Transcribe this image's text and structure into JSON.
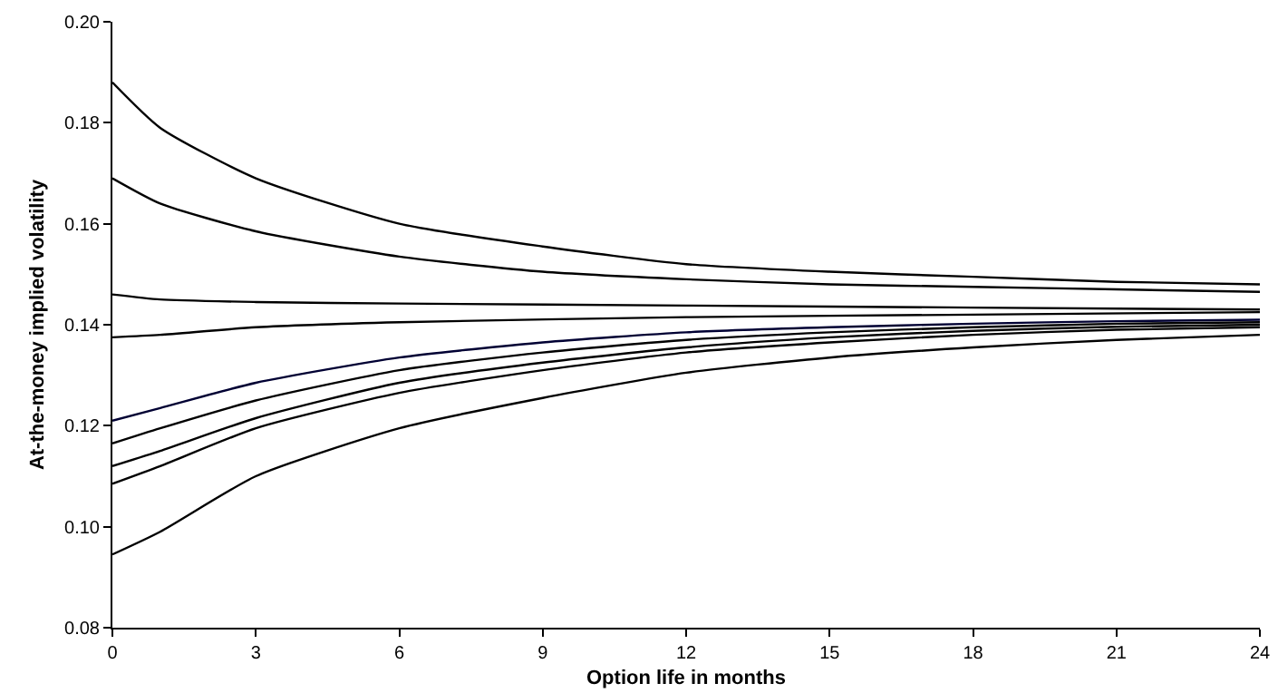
{
  "chart_data": {
    "type": "line",
    "xlabel": "Option life in months",
    "ylabel": "At-the-money implied volatility",
    "x": [
      0,
      1,
      3,
      6,
      9,
      12,
      15,
      18,
      21,
      24
    ],
    "xlim": [
      0,
      24
    ],
    "xticks": [
      0,
      3,
      6,
      9,
      12,
      15,
      18,
      21,
      24
    ],
    "ylim": [
      0.08,
      0.2
    ],
    "yticks": [
      {
        "value": 0.08,
        "label": "0.08"
      },
      {
        "value": 0.1,
        "label": "0.10"
      },
      {
        "value": 0.12,
        "label": "0.12"
      },
      {
        "value": 0.14,
        "label": "0.14"
      },
      {
        "value": 0.16,
        "label": "0.16"
      },
      {
        "value": 0.18,
        "label": "0.18"
      },
      {
        "value": 0.2,
        "label": "0.20"
      }
    ],
    "grid": false,
    "marker": "none",
    "line_style": "solid",
    "series": [
      {
        "color": "#000000",
        "values": [
          0.188,
          0.179,
          0.169,
          0.16,
          0.1555,
          0.152,
          0.1505,
          0.1495,
          0.1485,
          0.148
        ]
      },
      {
        "color": "#000000",
        "values": [
          0.169,
          0.164,
          0.1585,
          0.1535,
          0.1505,
          0.149,
          0.148,
          0.1475,
          0.147,
          0.1465
        ]
      },
      {
        "color": "#000000",
        "x": [
          0,
          1,
          3,
          6,
          12,
          18,
          24
        ],
        "values": [
          0.146,
          0.145,
          0.1445,
          0.1442,
          0.1438,
          0.1434,
          0.143
        ]
      },
      {
        "color": "#000000",
        "x": [
          0,
          1,
          3,
          6,
          12,
          18,
          24
        ],
        "values": [
          0.1375,
          0.138,
          0.1395,
          0.1405,
          0.1415,
          0.142,
          0.1425
        ]
      },
      {
        "color": "#000033",
        "values": [
          0.121,
          0.1235,
          0.1285,
          0.1335,
          0.1365,
          0.1385,
          0.1395,
          0.1402,
          0.1407,
          0.141
        ]
      },
      {
        "color": "#000000",
        "values": [
          0.1165,
          0.1195,
          0.125,
          0.131,
          0.1345,
          0.137,
          0.1385,
          0.1395,
          0.1402,
          0.1405
        ]
      },
      {
        "color": "#000000",
        "values": [
          0.112,
          0.115,
          0.1215,
          0.1285,
          0.1325,
          0.1355,
          0.1375,
          0.1388,
          0.1396,
          0.14
        ]
      },
      {
        "color": "#000000",
        "values": [
          0.1085,
          0.112,
          0.1195,
          0.1265,
          0.131,
          0.1345,
          0.1365,
          0.138,
          0.139,
          0.1395
        ]
      },
      {
        "color": "#000000",
        "values": [
          0.0945,
          0.099,
          0.11,
          0.1195,
          0.1255,
          0.1305,
          0.1335,
          0.1355,
          0.137,
          0.138
        ]
      }
    ]
  }
}
